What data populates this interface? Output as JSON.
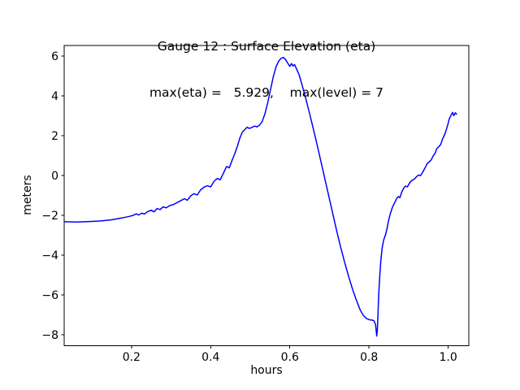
{
  "figure": {
    "background": "#ffffff",
    "text_color": "#000000"
  },
  "chart_data": {
    "type": "line",
    "title": "Gauge 12 : Surface Elevation (eta)",
    "subtitle": "max(eta) =   5.929,    max(level) = 7",
    "max_eta": 5.929,
    "max_level": 7,
    "xlabel": "hours",
    "ylabel": "meters",
    "xlim": [
      0.03,
      1.052
    ],
    "ylim": [
      -8.56,
      6.53
    ],
    "xticks": [
      0.2,
      0.4,
      0.6,
      0.8,
      1.0
    ],
    "xtick_labels": [
      "0.2",
      "0.4",
      "0.6",
      "0.8",
      "1.0"
    ],
    "yticks": [
      6,
      4,
      2,
      0,
      -2,
      -4,
      -6,
      -8
    ],
    "ytick_labels": [
      "6",
      "4",
      "2",
      "0",
      "−2",
      "−4",
      "−6",
      "−8"
    ],
    "grid": false,
    "legend": null,
    "line_color": "#0000ff",
    "line_width": 1.5,
    "spine_color": "#000000",
    "series": [
      {
        "name": "eta",
        "points": [
          [
            0.03,
            -2.33
          ],
          [
            0.06,
            -2.34
          ],
          [
            0.09,
            -2.32
          ],
          [
            0.12,
            -2.29
          ],
          [
            0.15,
            -2.23
          ],
          [
            0.175,
            -2.14
          ],
          [
            0.195,
            -2.06
          ],
          [
            0.205,
            -2.0
          ],
          [
            0.212,
            -1.93
          ],
          [
            0.218,
            -1.99
          ],
          [
            0.226,
            -1.9
          ],
          [
            0.233,
            -1.94
          ],
          [
            0.24,
            -1.83
          ],
          [
            0.25,
            -1.75
          ],
          [
            0.257,
            -1.83
          ],
          [
            0.265,
            -1.66
          ],
          [
            0.272,
            -1.72
          ],
          [
            0.28,
            -1.58
          ],
          [
            0.288,
            -1.63
          ],
          [
            0.296,
            -1.52
          ],
          [
            0.304,
            -1.48
          ],
          [
            0.312,
            -1.4
          ],
          [
            0.32,
            -1.32
          ],
          [
            0.327,
            -1.24
          ],
          [
            0.334,
            -1.17
          ],
          [
            0.341,
            -1.25
          ],
          [
            0.35,
            -1.02
          ],
          [
            0.358,
            -0.92
          ],
          [
            0.366,
            -0.98
          ],
          [
            0.375,
            -0.72
          ],
          [
            0.384,
            -0.58
          ],
          [
            0.392,
            -0.52
          ],
          [
            0.4,
            -0.58
          ],
          [
            0.409,
            -0.28
          ],
          [
            0.417,
            -0.15
          ],
          [
            0.424,
            -0.22
          ],
          [
            0.432,
            0.1
          ],
          [
            0.44,
            0.45
          ],
          [
            0.447,
            0.38
          ],
          [
            0.454,
            0.75
          ],
          [
            0.461,
            1.1
          ],
          [
            0.468,
            1.5
          ],
          [
            0.474,
            1.9
          ],
          [
            0.48,
            2.18
          ],
          [
            0.486,
            2.3
          ],
          [
            0.492,
            2.42
          ],
          [
            0.498,
            2.36
          ],
          [
            0.505,
            2.42
          ],
          [
            0.511,
            2.48
          ],
          [
            0.517,
            2.44
          ],
          [
            0.523,
            2.52
          ],
          [
            0.53,
            2.7
          ],
          [
            0.537,
            3.1
          ],
          [
            0.544,
            3.65
          ],
          [
            0.551,
            4.3
          ],
          [
            0.558,
            4.95
          ],
          [
            0.565,
            5.45
          ],
          [
            0.572,
            5.75
          ],
          [
            0.578,
            5.89
          ],
          [
            0.584,
            5.93
          ],
          [
            0.59,
            5.8
          ],
          [
            0.595,
            5.63
          ],
          [
            0.6,
            5.48
          ],
          [
            0.604,
            5.62
          ],
          [
            0.608,
            5.5
          ],
          [
            0.612,
            5.57
          ],
          [
            0.617,
            5.35
          ],
          [
            0.623,
            5.08
          ],
          [
            0.63,
            4.6
          ],
          [
            0.639,
            3.95
          ],
          [
            0.649,
            3.18
          ],
          [
            0.659,
            2.36
          ],
          [
            0.669,
            1.52
          ],
          [
            0.679,
            0.66
          ],
          [
            0.689,
            -0.22
          ],
          [
            0.699,
            -1.1
          ],
          [
            0.709,
            -1.98
          ],
          [
            0.719,
            -2.84
          ],
          [
            0.729,
            -3.66
          ],
          [
            0.739,
            -4.42
          ],
          [
            0.749,
            -5.12
          ],
          [
            0.759,
            -5.76
          ],
          [
            0.769,
            -6.32
          ],
          [
            0.778,
            -6.78
          ],
          [
            0.786,
            -7.05
          ],
          [
            0.794,
            -7.2
          ],
          [
            0.802,
            -7.26
          ],
          [
            0.808,
            -7.27
          ],
          [
            0.813,
            -7.32
          ],
          [
            0.8165,
            -7.5
          ],
          [
            0.8195,
            -8.08
          ],
          [
            0.821,
            -7.8
          ],
          [
            0.8225,
            -7.0
          ],
          [
            0.8245,
            -6.0
          ],
          [
            0.827,
            -5.05
          ],
          [
            0.83,
            -4.25
          ],
          [
            0.833,
            -3.65
          ],
          [
            0.837,
            -3.25
          ],
          [
            0.841,
            -3.02
          ],
          [
            0.845,
            -2.72
          ],
          [
            0.849,
            -2.3
          ],
          [
            0.853,
            -1.98
          ],
          [
            0.857,
            -1.72
          ],
          [
            0.861,
            -1.52
          ],
          [
            0.866,
            -1.32
          ],
          [
            0.87,
            -1.15
          ],
          [
            0.874,
            -1.06
          ],
          [
            0.878,
            -1.12
          ],
          [
            0.883,
            -0.82
          ],
          [
            0.888,
            -0.62
          ],
          [
            0.892,
            -0.54
          ],
          [
            0.897,
            -0.57
          ],
          [
            0.903,
            -0.36
          ],
          [
            0.909,
            -0.24
          ],
          [
            0.915,
            -0.18
          ],
          [
            0.92,
            -0.06
          ],
          [
            0.925,
            0.02
          ],
          [
            0.93,
            -0.01
          ],
          [
            0.936,
            0.18
          ],
          [
            0.942,
            0.4
          ],
          [
            0.947,
            0.6
          ],
          [
            0.952,
            0.68
          ],
          [
            0.957,
            0.78
          ],
          [
            0.962,
            0.98
          ],
          [
            0.967,
            1.12
          ],
          [
            0.971,
            1.34
          ],
          [
            0.976,
            1.44
          ],
          [
            0.981,
            1.55
          ],
          [
            0.986,
            1.84
          ],
          [
            0.991,
            2.06
          ],
          [
            0.995,
            2.28
          ],
          [
            0.999,
            2.56
          ],
          [
            1.003,
            2.86
          ],
          [
            1.007,
            3.02
          ],
          [
            1.011,
            3.17
          ],
          [
            1.014,
            3.0
          ],
          [
            1.018,
            3.15
          ],
          [
            1.021,
            3.08
          ]
        ]
      }
    ]
  }
}
